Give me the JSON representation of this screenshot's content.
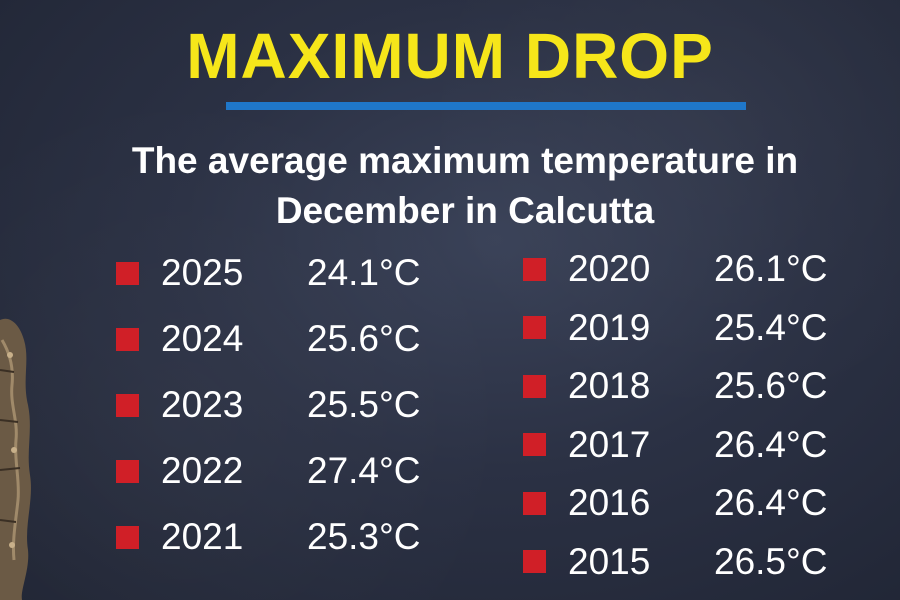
{
  "headline": "MAXIMUM DROP",
  "subtitle_line1": "The average maximum temperature in",
  "subtitle_line2": "December in Calcutta",
  "colors": {
    "headline": "#f6e61a",
    "rule": "#1f77c9",
    "bullet": "#d01f27",
    "text": "#ffffff",
    "background": "#2b3144"
  },
  "left_column": [
    {
      "year": "2025",
      "temp": "24.1°C"
    },
    {
      "year": "2024",
      "temp": "25.6°C"
    },
    {
      "year": "2023",
      "temp": "25.5°C"
    },
    {
      "year": "2022",
      "temp": "27.4°C"
    },
    {
      "year": "2021",
      "temp": "25.3°C"
    }
  ],
  "right_column": [
    {
      "year": "2020",
      "temp": "26.1°C"
    },
    {
      "year": "2019",
      "temp": "25.4°C"
    },
    {
      "year": "2018",
      "temp": "25.6°C"
    },
    {
      "year": "2017",
      "temp": "26.4°C"
    },
    {
      "year": "2016",
      "temp": "26.4°C"
    },
    {
      "year": "2015",
      "temp": "26.5°C"
    }
  ]
}
